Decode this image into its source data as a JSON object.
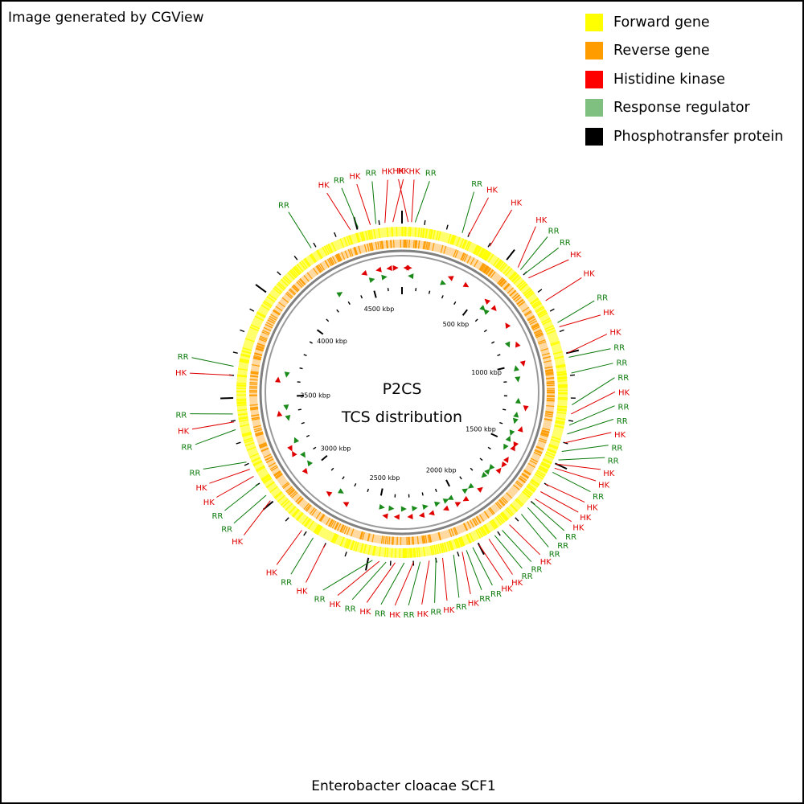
{
  "header": {
    "credit": "Image generated by CGView"
  },
  "legend": {
    "items": [
      {
        "label": "Forward gene",
        "color": "#ffff00"
      },
      {
        "label": "Reverse gene",
        "color": "#ff9c00"
      },
      {
        "label": "Histidine kinase",
        "color": "#ff0000"
      },
      {
        "label": "Response regulator",
        "color": "#7fbf7f"
      },
      {
        "label": "Phosphotransfer protein",
        "color": "#000000"
      }
    ]
  },
  "map": {
    "title_line1": "P2CS",
    "title_line2": "TCS distribution",
    "genome_length_kbp": 4700,
    "tick_labels": [
      "500 kbp",
      "1000 kbp",
      "1500 kbp",
      "2000 kbp",
      "2500 kbp",
      "3000 kbp",
      "3500 kbp",
      "4000 kbp",
      "4500 kbp"
    ],
    "features": [
      {
        "type": "HK",
        "kbp": 27
      },
      {
        "type": "HK",
        "kbp": 42
      },
      {
        "type": "RR",
        "kbp": 58
      },
      {
        "type": "RR",
        "kbp": 270
      },
      {
        "type": "HK",
        "kbp": 300
      },
      {
        "type": "HK",
        "kbp": 405
      },
      {
        "type": "HK",
        "kbp": 560
      },
      {
        "type": "RR",
        "kbp": 575
      },
      {
        "type": "RR",
        "kbp": 600
      },
      {
        "type": "HK",
        "kbp": 625
      },
      {
        "type": "HK",
        "kbp": 750
      },
      {
        "type": "RR",
        "kbp": 860
      },
      {
        "type": "HK",
        "kbp": 880
      },
      {
        "type": "HK",
        "kbp": 1000
      },
      {
        "type": "RR",
        "kbp": 1020
      },
      {
        "type": "RR",
        "kbp": 1090
      },
      {
        "type": "RR",
        "kbp": 1230
      },
      {
        "type": "HK",
        "kbp": 1270
      },
      {
        "type": "RR",
        "kbp": 1320
      },
      {
        "type": "RR",
        "kbp": 1360
      },
      {
        "type": "HK",
        "kbp": 1400
      },
      {
        "type": "RR",
        "kbp": 1440
      },
      {
        "type": "RR",
        "kbp": 1480
      },
      {
        "type": "HK",
        "kbp": 1500
      },
      {
        "type": "HK",
        "kbp": 1520
      },
      {
        "type": "RR",
        "kbp": 1540
      },
      {
        "type": "HK",
        "kbp": 1600
      },
      {
        "type": "HK",
        "kbp": 1640
      },
      {
        "type": "HK",
        "kbp": 1680
      },
      {
        "type": "RR",
        "kbp": 1700
      },
      {
        "type": "RR",
        "kbp": 1730
      },
      {
        "type": "RR",
        "kbp": 1770
      },
      {
        "type": "HK",
        "kbp": 1840
      },
      {
        "type": "RR",
        "kbp": 1880
      },
      {
        "type": "RR",
        "kbp": 1920
      },
      {
        "type": "HK",
        "kbp": 1950
      },
      {
        "type": "HK",
        "kbp": 2000
      },
      {
        "type": "RR",
        "kbp": 2030
      },
      {
        "type": "RR",
        "kbp": 2060
      },
      {
        "type": "HK",
        "kbp": 2080
      },
      {
        "type": "RR",
        "kbp": 2120
      },
      {
        "type": "HK",
        "kbp": 2170
      },
      {
        "type": "RR",
        "kbp": 2200
      },
      {
        "type": "HK",
        "kbp": 2230
      },
      {
        "type": "RR",
        "kbp": 2270
      },
      {
        "type": "HK",
        "kbp": 2300
      },
      {
        "type": "RR",
        "kbp": 2340
      },
      {
        "type": "HK",
        "kbp": 2380
      },
      {
        "type": "RR",
        "kbp": 2420
      },
      {
        "type": "HK",
        "kbp": 2450
      },
      {
        "type": "RR",
        "kbp": 2480
      },
      {
        "type": "HK",
        "kbp": 2700
      },
      {
        "type": "RR",
        "kbp": 2760
      },
      {
        "type": "HK",
        "kbp": 2820
      },
      {
        "type": "HK",
        "kbp": 3010
      },
      {
        "type": "RR",
        "kbp": 3040
      },
      {
        "type": "RR",
        "kbp": 3100
      },
      {
        "type": "HK",
        "kbp": 3140
      },
      {
        "type": "HK",
        "kbp": 3175
      },
      {
        "type": "RR",
        "kbp": 3210
      },
      {
        "type": "RR",
        "kbp": 3360
      },
      {
        "type": "HK",
        "kbp": 3395
      },
      {
        "type": "RR",
        "kbp": 3430
      },
      {
        "type": "HK",
        "kbp": 3600
      },
      {
        "type": "RR",
        "kbp": 3640
      },
      {
        "type": "RR",
        "kbp": 4280
      },
      {
        "type": "HK",
        "kbp": 4470
      },
      {
        "type": "RR",
        "kbp": 4505
      },
      {
        "type": "HK",
        "kbp": 4560
      },
      {
        "type": "RR",
        "kbp": 4585
      },
      {
        "type": "HK",
        "kbp": 4625
      },
      {
        "type": "HK",
        "kbp": 4660
      }
    ]
  },
  "footer": {
    "organism": "Enterobacter cloacae SCF1"
  }
}
